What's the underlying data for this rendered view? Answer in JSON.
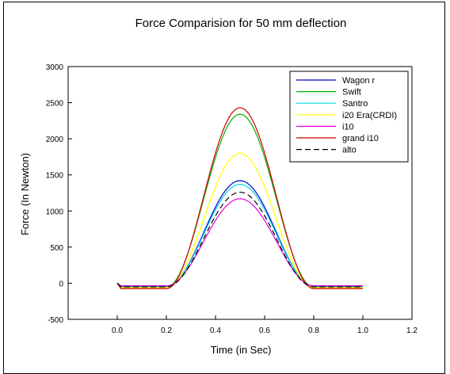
{
  "chart_data": {
    "type": "line",
    "title": "Force Comparision  for 50 mm deflection",
    "xlabel": "Time (in Sec)",
    "ylabel": "Force (In Newton)",
    "xlim": [
      -0.2,
      1.2
    ],
    "ylim": [
      -500,
      3000
    ],
    "xticks": [
      0.0,
      0.2,
      0.4,
      0.6,
      0.8,
      1.0,
      1.2
    ],
    "xtick_labels": [
      "0.0",
      "0.2",
      "0.4",
      "0.6",
      "0.8",
      "1.0",
      "1.2"
    ],
    "yticks": [
      -500,
      0,
      500,
      1000,
      1500,
      2000,
      2500,
      3000
    ],
    "ytick_labels": [
      "-500",
      "0",
      "500",
      "1000",
      "1500",
      "2000",
      "2500",
      "3000"
    ],
    "grid": false,
    "legend": "top-right",
    "pulse_start": 0.2,
    "pulse_end": 0.8,
    "baseline_end": 1.0,
    "series": [
      {
        "name": "Wagon r",
        "peak": 1420,
        "baseline": -45,
        "color": "#0000cc",
        "dash": "solid"
      },
      {
        "name": "Swift",
        "peak": 2340,
        "baseline": -55,
        "color": "#00b000",
        "dash": "solid"
      },
      {
        "name": "Santro",
        "peak": 1370,
        "baseline": -40,
        "color": "#00d8e0",
        "dash": "solid"
      },
      {
        "name": "i20 Era(CRDI)",
        "peak": 1800,
        "baseline": -60,
        "color": "#ffff00",
        "dash": "solid"
      },
      {
        "name": " i10",
        "peak": 1170,
        "baseline": -35,
        "color": "#e000e0",
        "dash": "solid"
      },
      {
        "name": "grand i10",
        "peak": 2430,
        "baseline": -75,
        "color": "#d00000",
        "dash": "solid"
      },
      {
        "name": "alto",
        "peak": 1260,
        "baseline": -50,
        "color": "#000000",
        "dash": "dashed"
      }
    ]
  }
}
